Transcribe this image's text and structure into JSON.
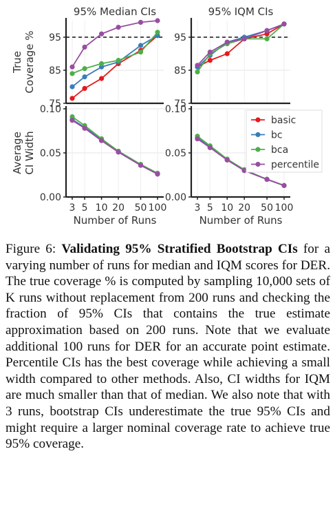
{
  "chart_data": [
    {
      "type": "line",
      "title": "95% Median CIs",
      "ylabel": "True Coverage %",
      "xlabel": "",
      "x": [
        3,
        5,
        10,
        20,
        50,
        100
      ],
      "xticks": [
        "3",
        "5",
        "10",
        "20",
        "50",
        "100"
      ],
      "ylim": [
        75,
        100
      ],
      "yticks": [
        75,
        85,
        95
      ],
      "reference_line": 95,
      "series": [
        {
          "name": "basic",
          "color": "#e41a1c",
          "values": [
            76.5,
            79.5,
            82.5,
            87.0,
            91.0,
            95.5
          ]
        },
        {
          "name": "bc",
          "color": "#377eb8",
          "values": [
            80.0,
            83.0,
            86.0,
            87.5,
            92.5,
            95.5
          ]
        },
        {
          "name": "bca",
          "color": "#4daf4a",
          "values": [
            84.0,
            85.5,
            87.0,
            88.0,
            90.5,
            96.5
          ]
        },
        {
          "name": "percentile",
          "color": "#984ea3",
          "values": [
            86.0,
            92.0,
            96.0,
            98.0,
            99.5,
            100.0
          ]
        }
      ]
    },
    {
      "type": "line",
      "title": "95% IQM CIs",
      "ylabel": "",
      "xlabel": "",
      "x": [
        3,
        5,
        10,
        20,
        50,
        100
      ],
      "xticks": [
        "3",
        "5",
        "10",
        "20",
        "50",
        "100"
      ],
      "ylim": [
        75,
        100
      ],
      "yticks": [
        75,
        85,
        95
      ],
      "reference_line": 95,
      "series": [
        {
          "name": "basic",
          "color": "#e41a1c",
          "values": [
            86.0,
            88.0,
            90.0,
            94.5,
            96.0,
            99.0
          ]
        },
        {
          "name": "bc",
          "color": "#377eb8",
          "values": [
            86.0,
            89.5,
            93.5,
            95.0,
            97.0,
            99.0
          ]
        },
        {
          "name": "bca",
          "color": "#4daf4a",
          "values": [
            84.5,
            90.0,
            93.0,
            94.5,
            94.5,
            99.0
          ]
        },
        {
          "name": "percentile",
          "color": "#984ea3",
          "values": [
            86.5,
            90.5,
            93.5,
            94.5,
            97.0,
            99.0
          ]
        }
      ]
    },
    {
      "type": "line",
      "title": "",
      "ylabel": "Average CI Width",
      "xlabel": "Number of Runs",
      "x": [
        3,
        5,
        10,
        20,
        50,
        100
      ],
      "xticks": [
        "3",
        "5",
        "10",
        "20",
        "50",
        "100"
      ],
      "ylim": [
        0,
        0.1
      ],
      "yticks": [
        "0.00",
        "0.05",
        "0.10"
      ],
      "series": [
        {
          "name": "basic",
          "color": "#e41a1c",
          "values": [
            0.087,
            0.078,
            0.064,
            0.051,
            0.036,
            0.026
          ]
        },
        {
          "name": "bc",
          "color": "#377eb8",
          "values": [
            0.088,
            0.079,
            0.065,
            0.051,
            0.036,
            0.026
          ]
        },
        {
          "name": "bca",
          "color": "#4daf4a",
          "values": [
            0.091,
            0.081,
            0.066,
            0.052,
            0.037,
            0.027
          ]
        },
        {
          "name": "percentile",
          "color": "#984ea3",
          "values": [
            0.087,
            0.078,
            0.064,
            0.051,
            0.036,
            0.026
          ]
        }
      ]
    },
    {
      "type": "line",
      "title": "",
      "ylabel": "",
      "xlabel": "Number of Runs",
      "x": [
        3,
        5,
        10,
        20,
        50,
        100
      ],
      "xticks": [
        "3",
        "5",
        "10",
        "20",
        "50",
        "100"
      ],
      "ylim": [
        0,
        0.1
      ],
      "yticks": [
        "0.00",
        "0.05",
        "0.10"
      ],
      "legend": "top-right",
      "series": [
        {
          "name": "basic",
          "color": "#e41a1c",
          "values": [
            0.066,
            0.056,
            0.042,
            0.03,
            0.02,
            0.013
          ]
        },
        {
          "name": "bc",
          "color": "#377eb8",
          "values": [
            0.067,
            0.057,
            0.042,
            0.03,
            0.02,
            0.013
          ]
        },
        {
          "name": "bca",
          "color": "#4daf4a",
          "values": [
            0.069,
            0.058,
            0.043,
            0.031,
            0.02,
            0.013
          ]
        },
        {
          "name": "percentile",
          "color": "#984ea3",
          "values": [
            0.066,
            0.056,
            0.042,
            0.03,
            0.02,
            0.013
          ]
        }
      ]
    }
  ],
  "caption": {
    "label": "Figure 6:",
    "bold": "Validating 95% Stratified Bootstrap CIs",
    "part1": " for a varying number of runs for median and IQM scores for ",
    "der1": "DER",
    "part2": ". The true coverage % is computed by sampling 10,000 sets of K runs without replacement from 200 runs and checking the fraction of 95% CIs that contains the true estimate approximation based on 200 runs. Note that we evaluate additional 100 runs for ",
    "der2": "DER",
    "part3": " for an accurate point estimate. Percentile CIs has the best coverage while achieving a small width compared to other methods. Also, CI widths for IQM are much smaller than that of median. We also note that with 3 runs, bootstrap CIs underestimate the true 95% CIs and might require a larger nominal coverage rate to achieve true 95% coverage."
  }
}
